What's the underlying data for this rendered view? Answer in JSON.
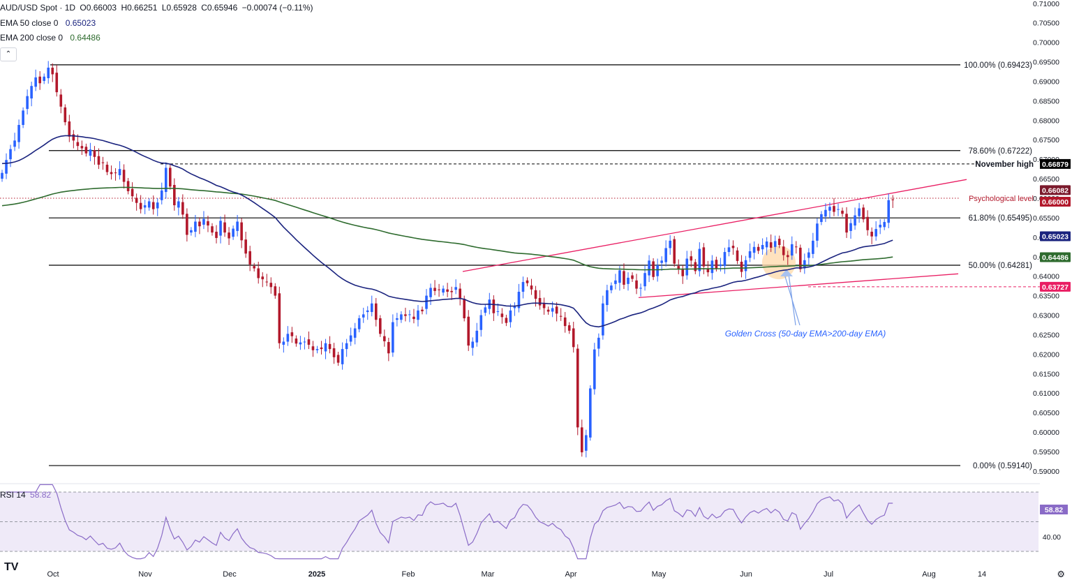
{
  "header": {
    "symbol": "AUD/USD Spot · 1D",
    "open": "O0.66003",
    "high": "H0.66251",
    "low": "L0.65928",
    "close": "C0.65946",
    "change": "−0.00074 (−0.11%)",
    "ema50_label": "EMA 50 close 0",
    "ema50_value": "0.65023",
    "ema200_label": "EMA 200 close 0",
    "ema200_value": "0.64486",
    "collapse_icon": "chevron-up-icon"
  },
  "rsi_header": {
    "label": "RSI 14",
    "value": "58.82"
  },
  "colors": {
    "up": "#2962ff",
    "down": "#b2182b",
    "ema50": "#1a237e",
    "ema200": "#2e6b2e",
    "channel": "#e91e63",
    "rsi": "#8a6bc7",
    "rsi_band": "#efeaf8",
    "fib": "#000000",
    "golden_cross": "#ffd8a8",
    "annotation_text": "#2962ff"
  },
  "chart_data": {
    "type": "candlestick",
    "title": "AUD/USD Spot · 1D",
    "price_axis_ticks": [
      "0.71000",
      "0.70500",
      "0.70000",
      "0.69500",
      "0.69000",
      "0.68500",
      "0.68000",
      "0.67500",
      "0.67000",
      "0.66500",
      "0.66000",
      "0.65500",
      "0.65000",
      "0.64500",
      "0.64000",
      "0.63500",
      "0.63000",
      "0.62500",
      "0.62000",
      "0.61500",
      "0.61000",
      "0.60500",
      "0.60000",
      "0.59500",
      "0.59000"
    ],
    "time_axis_labels": [
      "Oct",
      "Nov",
      "Dec",
      "2025",
      "Feb",
      "Mar",
      "Apr",
      "May",
      "Jun",
      "Jul",
      "Aug",
      "14"
    ],
    "ylim": [
      0.5898,
      0.7105
    ],
    "fib_levels": [
      {
        "label": "100.00% (0.69423)",
        "value": 0.69423
      },
      {
        "label": "78.60% (0.67222)",
        "value": 0.67222
      },
      {
        "label": "61.80% (0.65495)",
        "value": 0.65495
      },
      {
        "label": "50.00% (0.64281)",
        "value": 0.64281
      },
      {
        "label": "0.00% (0.59140)",
        "value": 0.5914
      }
    ],
    "annotations": {
      "november_high": {
        "label": "November high",
        "value": 0.66879,
        "value_label": "0.66879"
      },
      "psychological": {
        "label": "Psychological level",
        "value": 0.66,
        "value_label": "0.66000"
      },
      "support": {
        "value": 0.63727,
        "value_label": "0.63727"
      },
      "golden_cross": "Golden Cross (50-day EMA>200-day EMA)"
    },
    "price_badges": [
      {
        "value_label": "0.66082",
        "value": 0.66082,
        "style": "maroon"
      },
      {
        "value_label": "0.66000",
        "value": 0.66,
        "style": "darkred"
      },
      {
        "value_label": "0.65023",
        "value": 0.65023,
        "style": "ema50"
      },
      {
        "value_label": "0.64486",
        "value": 0.64486,
        "style": "ema200"
      },
      {
        "value_label": "0.63727",
        "value": 0.63727,
        "style": "support"
      }
    ],
    "closes": [
      0.6665,
      0.6698,
      0.6726,
      0.6748,
      0.6788,
      0.6825,
      0.6862,
      0.6888,
      0.691,
      0.6895,
      0.6912,
      0.6935,
      0.6918,
      0.6872,
      0.6835,
      0.6795,
      0.6758,
      0.6748,
      0.6734,
      0.6728,
      0.6715,
      0.6725,
      0.6706,
      0.6686,
      0.669,
      0.6667,
      0.6662,
      0.6665,
      0.6675,
      0.6642,
      0.6618,
      0.6605,
      0.6588,
      0.6572,
      0.6582,
      0.6592,
      0.6572,
      0.6589,
      0.662,
      0.6678,
      0.663,
      0.6582,
      0.6592,
      0.6558,
      0.6506,
      0.6518,
      0.654,
      0.6528,
      0.6547,
      0.653,
      0.6512,
      0.6498,
      0.6542,
      0.6512,
      0.6497,
      0.6522,
      0.654,
      0.6492,
      0.6458,
      0.643,
      0.642,
      0.6395,
      0.6392,
      0.6385,
      0.6372,
      0.635,
      0.6228,
      0.6232,
      0.6252,
      0.6246,
      0.6227,
      0.623,
      0.6232,
      0.6224,
      0.621,
      0.6213,
      0.6213,
      0.6228,
      0.6213,
      0.6192,
      0.6178,
      0.6213,
      0.6228,
      0.6248,
      0.6266,
      0.6292,
      0.6302,
      0.6312,
      0.633,
      0.6288,
      0.6252,
      0.6233,
      0.6202,
      0.6282,
      0.6292,
      0.6302,
      0.6298,
      0.6302,
      0.629,
      0.6312,
      0.631,
      0.635,
      0.637,
      0.6362,
      0.6364,
      0.6368,
      0.636,
      0.6359,
      0.6372,
      0.6342,
      0.6292,
      0.6222,
      0.6232,
      0.626,
      0.63,
      0.632,
      0.634,
      0.6305,
      0.631,
      0.6295,
      0.628,
      0.6312,
      0.6322,
      0.636,
      0.6385,
      0.6382,
      0.6366,
      0.6342,
      0.6325,
      0.6318,
      0.6309,
      0.6318,
      0.6304,
      0.6296,
      0.6272,
      0.626,
      0.6218,
      0.6012,
      0.5948,
      0.5992,
      0.6112,
      0.6212,
      0.6242,
      0.633,
      0.6364,
      0.6376,
      0.6389,
      0.6415,
      0.6378,
      0.6396,
      0.6393,
      0.6368,
      0.637,
      0.6408,
      0.644,
      0.6398,
      0.6428,
      0.644,
      0.6472,
      0.6491,
      0.6432,
      0.6419,
      0.64,
      0.6445,
      0.644,
      0.6413,
      0.647,
      0.6425,
      0.641,
      0.644,
      0.642,
      0.643,
      0.6462,
      0.6474,
      0.6472,
      0.6439,
      0.6411,
      0.6441,
      0.6464,
      0.6475,
      0.6465,
      0.648,
      0.6489,
      0.6473,
      0.649,
      0.648,
      0.6454,
      0.6449,
      0.6482,
      0.6475,
      0.6418,
      0.6441,
      0.6461,
      0.6491,
      0.6535,
      0.6559,
      0.657,
      0.6578,
      0.6565,
      0.6572,
      0.656,
      0.6512,
      0.6536,
      0.6556,
      0.6574,
      0.6546,
      0.6518,
      0.6502,
      0.6521,
      0.6532,
      0.6539,
      0.6595,
      0.6595
    ]
  }
}
